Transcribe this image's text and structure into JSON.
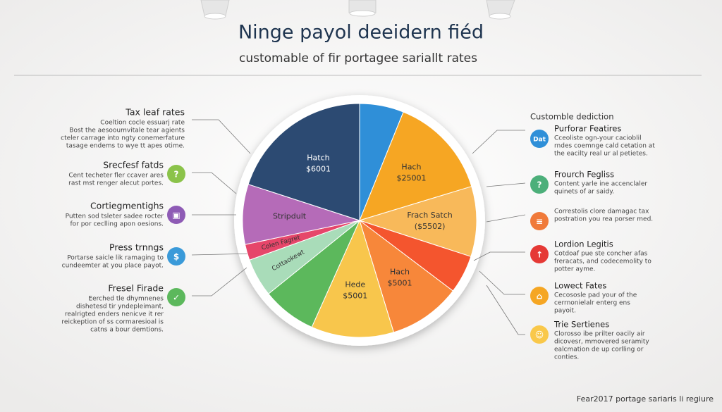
{
  "header": {
    "title": "Ninge payol deeidern fiéd",
    "subtitle": "customable of ﬁr portagee sariallt rates"
  },
  "chart_data": {
    "type": "pie",
    "categories": [
      null,
      "Hach",
      "Frach Satch",
      null,
      "Hach",
      "Hede",
      null,
      "Cottaokewt",
      "Colen Fagret",
      "Stripdult",
      "Hatch"
    ],
    "amounts": [
      null,
      "$25001",
      "($5502)",
      null,
      "$5001",
      "$5001",
      null,
      null,
      null,
      null,
      "$6001"
    ],
    "values": [
      6.1,
      14.2,
      9.7,
      5.3,
      10,
      11.4,
      7.5,
      5.3,
      2.2,
      8.3,
      20
    ],
    "colors": [
      "#2f8fd8",
      "#f6a623",
      "#f8b95a",
      "#f4552e",
      "#f7873a",
      "#f8c64c",
      "#5cb85c",
      "#a9dcb9",
      "#e6466a",
      "#b56bb8",
      "#2c4a72"
    ]
  },
  "left": [
    {
      "title": "Tax leaf rates",
      "lines": [
        "Coeltion cocle essuarj rate",
        "Bost the aesooumvitale tear agients",
        "cteler carrage into ngty conemerfature",
        "tasage endems to wye tt apes otime."
      ]
    },
    {
      "title": "Srecfesf fatds",
      "icon": "?",
      "color": "#8bc34a",
      "lines": [
        "Cent techeter fler ccaver ares",
        "rast mst renger alecut portes."
      ]
    },
    {
      "title": "Cortiegmentighs",
      "icon": "▣",
      "color": "#8e5bb5",
      "lines": [
        "Putten sod tsleter sadee rocter",
        "for por ceclling apon oesions."
      ]
    },
    {
      "title": "Press trnngs",
      "icon": "$",
      "color": "#3a9ad9",
      "lines": [
        "Portarse saicle lik ramaging to",
        "cundeemter at you place payot."
      ]
    },
    {
      "title": "Fresel Firade",
      "icon": "✓",
      "color": "#5cb85c",
      "lines": [
        "Eerched tle dhymnenes",
        "dishetesd tir yndepleimant,",
        "realrigted enders nenicve it rer",
        "reickeption of ss cormaresioal is",
        "catns a bour demtions."
      ]
    }
  ],
  "right_header": "Customble dediction",
  "right": [
    {
      "title": "Purforar Featires",
      "icon": "Dat",
      "color": "#2f8fd8",
      "lines": [
        "Cceoliste ogn-your cacioblil",
        "rndes coemnge cald cetation at",
        "the eacilty real ur al petietes."
      ]
    },
    {
      "title": "Frourch Fegliss",
      "icon": "?",
      "color": "#4caf7a",
      "lines": [
        "Content yarle ine accenclaler",
        "quinets of ar saidy."
      ]
    },
    {
      "icon": "≡",
      "color": "#f07a3a",
      "lines": [
        "Correstolis clore damagac tax",
        "postration you rea porser med."
      ]
    },
    {
      "title": "Lordion Legitis",
      "icon": "↑",
      "color": "#e53935",
      "lines": [
        "Cotdoaf pue ste concher afas",
        "freracats, and codecemolity to",
        "potter ayme."
      ]
    },
    {
      "title": "Lowect Fates",
      "icon": "⌂",
      "color": "#f5a623",
      "lines": [
        "Cecososle pad your of the",
        "cerrnonielalr enterg ens",
        "payoit."
      ]
    },
    {
      "title": "Trie Sertienes",
      "icon": "☺",
      "color": "#f9c84a",
      "lines": [
        "Clorosso ibe prilter oacily air",
        "dicovesr, mmovered seramity",
        "ealcmation de up corlling or",
        "conties."
      ]
    }
  ],
  "footer": "Fear2017 portage sariaris li regiure"
}
